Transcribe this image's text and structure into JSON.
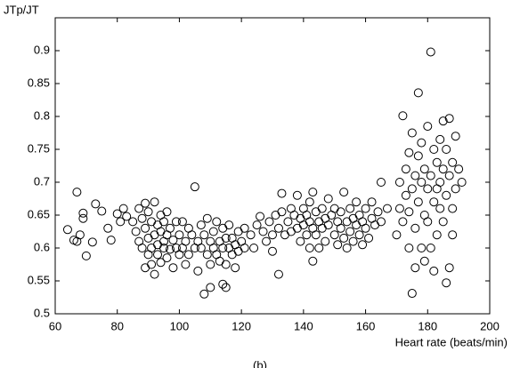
{
  "chart_data": {
    "type": "scatter",
    "xlabel": "Heart rate (beats/min)",
    "ylabel": "JTp/JT",
    "caption": "(b)",
    "xlim": [
      60,
      200
    ],
    "xticks": [
      60,
      80,
      100,
      120,
      140,
      160,
      180,
      200
    ],
    "ylim": [
      0.5,
      0.95
    ],
    "yticks": [
      0.5,
      0.55,
      0.6,
      0.65,
      0.7,
      0.75,
      0.8,
      0.85,
      0.9
    ],
    "color": "#000000",
    "x": [
      64,
      66,
      67,
      67,
      68,
      69,
      69,
      70,
      72,
      73,
      75,
      77,
      78,
      80,
      81,
      82,
      83,
      85,
      86,
      87,
      87,
      88,
      88,
      89,
      89,
      89,
      90,
      90,
      90,
      91,
      91,
      91,
      92,
      92,
      92,
      93,
      93,
      93,
      94,
      94,
      94,
      95,
      95,
      95,
      96,
      96,
      96,
      97,
      97,
      98,
      98,
      99,
      99,
      100,
      100,
      101,
      101,
      102,
      102,
      103,
      103,
      104,
      105,
      105,
      106,
      106,
      107,
      107,
      108,
      108,
      109,
      109,
      110,
      110,
      110,
      111,
      111,
      112,
      112,
      113,
      113,
      114,
      114,
      114,
      115,
      115,
      115,
      116,
      116,
      117,
      117,
      118,
      118,
      119,
      119,
      120,
      121,
      121,
      123,
      124,
      125,
      126,
      127,
      128,
      129,
      130,
      130,
      131,
      132,
      132,
      133,
      133,
      134,
      135,
      136,
      136,
      137,
      138,
      138,
      139,
      139,
      140,
      140,
      141,
      141,
      142,
      142,
      142,
      143,
      143,
      143,
      144,
      144,
      145,
      145,
      146,
      146,
      147,
      147,
      148,
      148,
      149,
      150,
      150,
      151,
      151,
      152,
      152,
      153,
      153,
      154,
      154,
      155,
      155,
      156,
      156,
      157,
      157,
      158,
      158,
      159,
      159,
      160,
      160,
      161,
      162,
      162,
      163,
      164,
      165,
      165,
      167,
      170,
      171,
      171,
      172,
      172,
      173,
      173,
      174,
      174,
      174,
      175,
      175,
      175,
      176,
      176,
      176,
      177,
      177,
      177,
      178,
      178,
      178,
      179,
      179,
      179,
      180,
      180,
      180,
      181,
      181,
      181,
      182,
      182,
      182,
      183,
      183,
      183,
      184,
      184,
      184,
      185,
      185,
      185,
      186,
      186,
      186,
      187,
      187,
      187,
      188,
      188,
      188,
      189,
      189,
      190,
      191
    ],
    "values": [
      0.628,
      0.612,
      0.685,
      0.61,
      0.62,
      0.645,
      0.653,
      0.588,
      0.609,
      0.667,
      0.656,
      0.63,
      0.612,
      0.652,
      0.64,
      0.66,
      0.648,
      0.64,
      0.625,
      0.66,
      0.61,
      0.6,
      0.645,
      0.57,
      0.63,
      0.668,
      0.59,
      0.615,
      0.655,
      0.6,
      0.64,
      0.575,
      0.62,
      0.67,
      0.56,
      0.605,
      0.635,
      0.59,
      0.625,
      0.65,
      0.578,
      0.61,
      0.6,
      0.64,
      0.62,
      0.585,
      0.655,
      0.598,
      0.63,
      0.612,
      0.57,
      0.64,
      0.6,
      0.62,
      0.59,
      0.6,
      0.64,
      0.61,
      0.575,
      0.63,
      0.59,
      0.62,
      0.693,
      0.6,
      0.61,
      0.565,
      0.635,
      0.6,
      0.53,
      0.62,
      0.59,
      0.645,
      0.61,
      0.575,
      0.54,
      0.625,
      0.6,
      0.59,
      0.64,
      0.61,
      0.58,
      0.6,
      0.545,
      0.63,
      0.615,
      0.575,
      0.54,
      0.6,
      0.635,
      0.59,
      0.615,
      0.605,
      0.57,
      0.625,
      0.595,
      0.61,
      0.63,
      0.6,
      0.62,
      0.6,
      0.635,
      0.648,
      0.625,
      0.61,
      0.64,
      0.62,
      0.595,
      0.65,
      0.56,
      0.63,
      0.683,
      0.655,
      0.62,
      0.64,
      0.625,
      0.66,
      0.65,
      0.63,
      0.68,
      0.645,
      0.61,
      0.635,
      0.66,
      0.62,
      0.65,
      0.67,
      0.6,
      0.64,
      0.685,
      0.63,
      0.58,
      0.655,
      0.62,
      0.64,
      0.6,
      0.66,
      0.63,
      0.645,
      0.61,
      0.675,
      0.635,
      0.65,
      0.62,
      0.66,
      0.64,
      0.605,
      0.655,
      0.63,
      0.685,
      0.615,
      0.64,
      0.6,
      0.66,
      0.625,
      0.645,
      0.61,
      0.67,
      0.635,
      0.62,
      0.65,
      0.64,
      0.605,
      0.66,
      0.63,
      0.615,
      0.645,
      0.67,
      0.635,
      0.655,
      0.7,
      0.64,
      0.66,
      0.62,
      0.66,
      0.7,
      0.801,
      0.64,
      0.68,
      0.72,
      0.6,
      0.745,
      0.655,
      0.531,
      0.69,
      0.775,
      0.63,
      0.71,
      0.57,
      0.836,
      0.67,
      0.74,
      0.6,
      0.7,
      0.76,
      0.65,
      0.72,
      0.58,
      0.69,
      0.785,
      0.64,
      0.898,
      0.71,
      0.6,
      0.565,
      0.75,
      0.67,
      0.73,
      0.62,
      0.69,
      0.66,
      0.765,
      0.7,
      0.793,
      0.64,
      0.72,
      0.547,
      0.68,
      0.75,
      0.57,
      0.71,
      0.797,
      0.66,
      0.73,
      0.62,
      0.77,
      0.69,
      0.72,
      0.7
    ]
  }
}
